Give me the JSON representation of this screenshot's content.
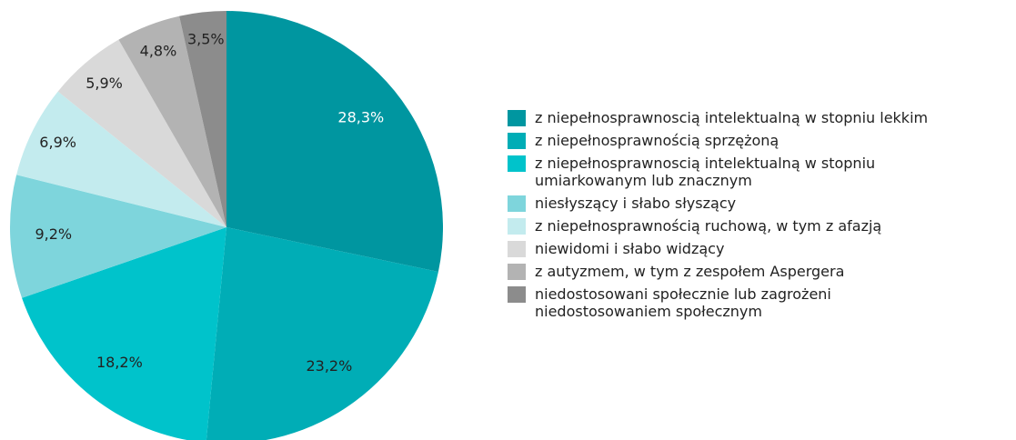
{
  "chart_data": {
    "type": "pie",
    "categories": [
      "z niepełnosprawnoscią intelektualną w stopniu lekkim",
      "z niepełnosprawnością sprzężoną",
      "z niepełnosprawnoscią intelektualną w stopniu\numiarkowanym lub znacznym",
      "niesłyszący i słabo słyszący",
      "z niepełnosprawnością ruchową, w tym z afazją",
      "niewidomi i słabo widzący",
      "z autyzmem, w tym z zespołem Aspergera",
      "niedostosowani społecznie lub zagrożeni\nniedostosowaniem społecznym"
    ],
    "values": [
      28.3,
      23.2,
      18.2,
      9.2,
      6.9,
      5.9,
      4.8,
      3.5
    ],
    "value_labels": [
      "28,3%",
      "23,2%",
      "18,2%",
      "9,2%",
      "6,9%",
      "5,9%",
      "4,8%",
      "3,5%"
    ],
    "colors": [
      "#0096a0",
      "#00adb6",
      "#00c3cb",
      "#7ed5dc",
      "#c3ebee",
      "#d9d9d9",
      "#b3b3b3",
      "#8c8c8c"
    ],
    "legend": "right"
  }
}
